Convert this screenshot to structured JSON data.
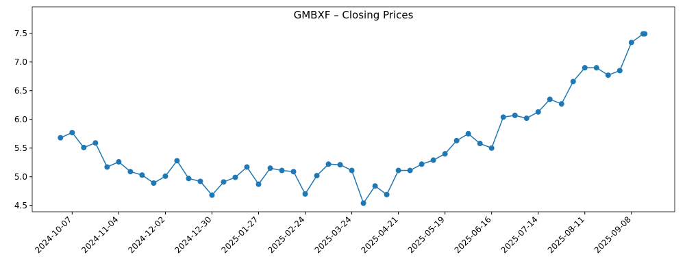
{
  "chart_data": {
    "type": "line",
    "title": "GMBXF – Closing Prices",
    "x": [
      "2024-09-30",
      "2024-10-07",
      "2024-10-14",
      "2024-10-21",
      "2024-10-28",
      "2024-11-04",
      "2024-11-11",
      "2024-11-18",
      "2024-11-25",
      "2024-12-02",
      "2024-12-09",
      "2024-12-16",
      "2024-12-23",
      "2024-12-30",
      "2025-01-06",
      "2025-01-13",
      "2025-01-20",
      "2025-01-27",
      "2025-02-03",
      "2025-02-10",
      "2025-02-17",
      "2025-02-24",
      "2025-03-03",
      "2025-03-10",
      "2025-03-17",
      "2025-03-24",
      "2025-03-31",
      "2025-04-07",
      "2025-04-14",
      "2025-04-21",
      "2025-04-28",
      "2025-05-05",
      "2025-05-12",
      "2025-05-19",
      "2025-05-26",
      "2025-06-02",
      "2025-06-09",
      "2025-06-16",
      "2025-06-23",
      "2025-06-30",
      "2025-07-07",
      "2025-07-14",
      "2025-07-21",
      "2025-07-28",
      "2025-08-04",
      "2025-08-11",
      "2025-08-18",
      "2025-08-25",
      "2025-09-01",
      "2025-09-08",
      "2025-09-15",
      "2025-09-16"
    ],
    "series": [
      {
        "color": "#1f77b4",
        "values": [
          5.68,
          5.77,
          5.51,
          5.59,
          5.17,
          5.26,
          5.09,
          5.03,
          4.89,
          5.01,
          5.28,
          4.97,
          4.92,
          4.68,
          4.91,
          4.99,
          5.17,
          4.87,
          5.15,
          5.11,
          5.09,
          4.7,
          5.02,
          5.22,
          5.21,
          5.11,
          4.54,
          4.84,
          4.69,
          5.11,
          5.11,
          5.22,
          5.29,
          5.4,
          5.63,
          5.75,
          5.58,
          5.5,
          6.04,
          6.07,
          6.02,
          6.13,
          6.35,
          6.27,
          6.66,
          6.9,
          6.9,
          6.77,
          6.85,
          7.34,
          7.49,
          7.49
        ]
      }
    ],
    "xlim": [
      "2024-09-13",
      "2025-10-04"
    ],
    "xticks": [
      "2024-10-07",
      "2024-11-04",
      "2024-12-02",
      "2024-12-30",
      "2025-01-27",
      "2025-02-24",
      "2025-03-24",
      "2025-04-21",
      "2025-05-19",
      "2025-06-16",
      "2025-07-14",
      "2025-08-11",
      "2025-09-08"
    ],
    "ylim": [
      4.39,
      7.64
    ],
    "yticks": [
      4.5,
      {
        "value": 5,
        "label": "5.0"
      },
      5.5,
      {
        "value": 6,
        "label": "6.0"
      },
      6.5,
      {
        "value": 7,
        "label": "7.0"
      },
      7.5
    ]
  }
}
